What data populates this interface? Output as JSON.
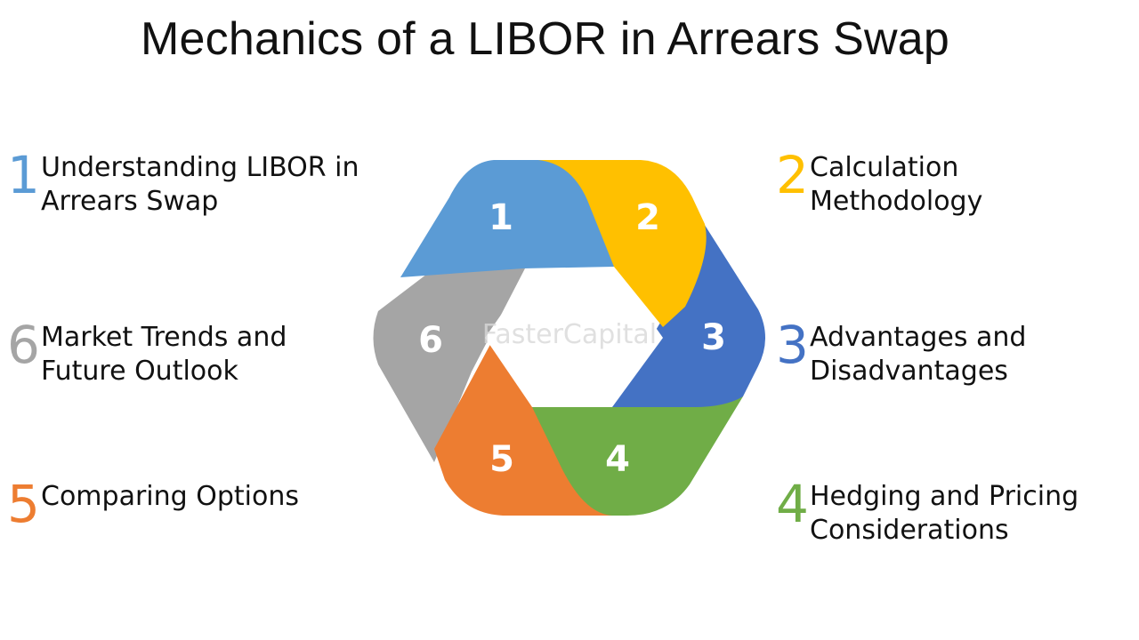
{
  "title": "Mechanics of a LIBOR in Arrears Swap",
  "watermark": "FasterCapital",
  "colors": {
    "seg1": "#5B9BD5",
    "seg2": "#FFC000",
    "seg3": "#4472C4",
    "seg4": "#70AD47",
    "seg5": "#ED7D31",
    "seg6": "#A5A5A5"
  },
  "items": [
    {
      "number": "1",
      "label": "Understanding LIBOR in\nArrears Swap"
    },
    {
      "number": "2",
      "label": "Calculation\nMethodology"
    },
    {
      "number": "3",
      "label": "Advantages and\nDisadvantages"
    },
    {
      "number": "4",
      "label": "Hedging and Pricing\nConsiderations"
    },
    {
      "number": "5",
      "label": "Comparing Options"
    },
    {
      "number": "6",
      "label": "Market Trends and\nFuture Outlook"
    }
  ]
}
